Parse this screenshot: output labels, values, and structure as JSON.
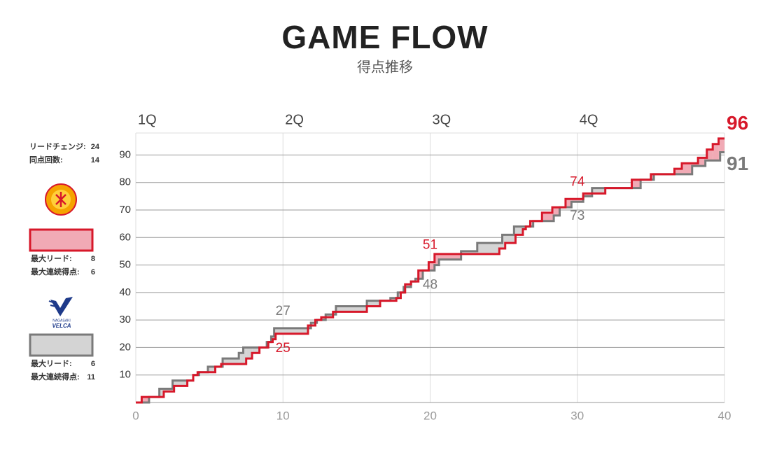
{
  "chart_data": {
    "type": "step",
    "title": "GAME FLOW",
    "subtitle": "得点推移",
    "xlim": [
      0,
      40
    ],
    "xticks": [
      0,
      10,
      20,
      30,
      40
    ],
    "ylim": [
      0,
      98
    ],
    "yticks": [
      10,
      20,
      30,
      40,
      50,
      60,
      70,
      80,
      90
    ],
    "grid": true,
    "quarters": [
      {
        "x": 0,
        "label": "1Q"
      },
      {
        "x": 10,
        "label": "2Q"
      },
      {
        "x": 20,
        "label": "3Q"
      },
      {
        "x": 30,
        "label": "4Q"
      }
    ],
    "game_stats": [
      {
        "label": "リードチェンジ:",
        "value": 24
      },
      {
        "label": "同点回数:",
        "value": 14
      }
    ],
    "series": [
      {
        "color": "#d7182a",
        "fill": "#f1aab5",
        "x": [
          0,
          0.4,
          1.9,
          2.6,
          3.5,
          3.9,
          4.2,
          5.4,
          5.8,
          7.5,
          7.9,
          8.4,
          9.0,
          9.3,
          9.5,
          11.7,
          12.2,
          12.6,
          13.4,
          15.7,
          16.6,
          17.7,
          18.0,
          18.3,
          18.7,
          19.2,
          19.9,
          20.3,
          24.7,
          25.1,
          25.8,
          26.3,
          26.5,
          26.8,
          27.6,
          28.3,
          29.2,
          30.4,
          31.9,
          33.7,
          35.0,
          36.6,
          37.1,
          38.2,
          38.8,
          39.2,
          39.6,
          40
        ],
        "values": [
          0,
          2,
          4,
          6,
          8,
          10,
          11,
          13,
          14,
          16,
          18,
          20,
          22,
          23,
          25,
          28,
          30,
          31,
          33,
          35,
          37,
          38,
          40,
          43,
          44,
          48,
          51,
          54,
          56,
          58,
          61,
          63,
          64,
          66,
          69,
          71,
          74,
          76,
          78,
          81,
          83,
          85,
          87,
          89,
          92,
          94,
          96,
          96
        ],
        "stats": [
          {
            "label": "最大リード:",
            "value": 8
          },
          {
            "label": "最大連続得点:",
            "value": 6
          }
        ]
      },
      {
        "color": "#7a7a7a",
        "fill": "#d4d4d4",
        "x": [
          0,
          0.9,
          1.6,
          2.5,
          3.9,
          4.3,
          4.9,
          5.9,
          7.0,
          7.3,
          8.9,
          9.2,
          9.4,
          11.9,
          12.3,
          12.9,
          13.6,
          15.7,
          17.3,
          17.8,
          18.2,
          18.7,
          19.0,
          19.5,
          20.3,
          20.6,
          22.1,
          23.2,
          24.9,
          25.7,
          27.0,
          28.4,
          28.8,
          29.6,
          30.4,
          31.0,
          34.3,
          35.2,
          37.8,
          38.7,
          39.7,
          40
        ],
        "values": [
          0,
          2,
          5,
          8,
          10,
          11,
          13,
          16,
          18,
          20,
          22,
          24,
          27,
          29,
          30,
          32,
          35,
          37,
          38,
          40,
          42,
          44,
          45,
          48,
          50,
          52,
          55,
          58,
          61,
          64,
          66,
          68,
          71,
          73,
          75,
          78,
          81,
          83,
          86,
          88,
          91,
          91
        ],
        "logo_text": [
          "NAGASAKI",
          "VELCA"
        ],
        "stats": [
          {
            "label": "最大リード:",
            "value": 6
          },
          {
            "label": "最大連続得点:",
            "value": 11
          }
        ]
      }
    ],
    "quarter_scores": [
      {
        "x": 10,
        "values": [
          25,
          27
        ]
      },
      {
        "x": 20,
        "values": [
          51,
          48
        ]
      },
      {
        "x": 30,
        "values": [
          74,
          73
        ]
      },
      {
        "x": 40,
        "values": [
          96,
          91
        ]
      }
    ]
  }
}
